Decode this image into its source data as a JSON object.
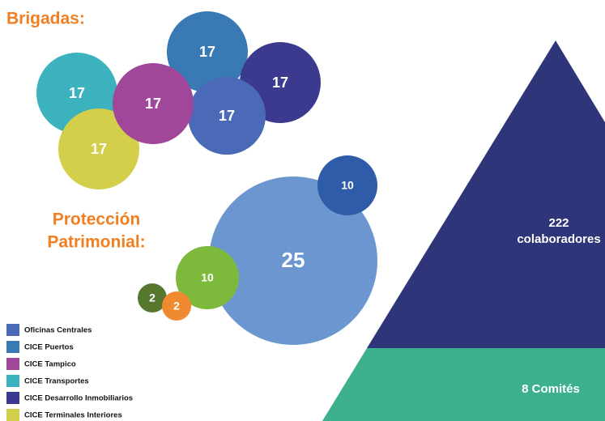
{
  "brigadas": {
    "title": "Brigadas:",
    "bubbles": [
      {
        "label": "17",
        "color": "#3a7ab4"
      },
      {
        "label": "17",
        "color": "#3b3a8e"
      },
      {
        "label": "17",
        "color": "#4a6ab8"
      },
      {
        "label": "17",
        "color": "#3bb2be"
      },
      {
        "label": "17",
        "color": "#d3cf4a"
      },
      {
        "label": "17",
        "color": "#a0479a"
      }
    ]
  },
  "proteccion": {
    "title": [
      "Protección",
      "Patrimonial:"
    ],
    "bubbles": [
      {
        "label": "25",
        "color": "#6b96d0"
      },
      {
        "label": "10",
        "color": "#2f5ca8"
      },
      {
        "label": "10",
        "color": "#7dba3c"
      },
      {
        "label": "2",
        "color": "#55782e"
      },
      {
        "label": "2",
        "color": "#f08a30"
      }
    ]
  },
  "legend": [
    {
      "label": "Oficinas Centrales",
      "color": "#4a6ab8"
    },
    {
      "label": " CICE Puertos",
      "color": "#3a7ab4"
    },
    {
      "label": "CICE Tampico",
      "color": "#a0479a"
    },
    {
      "label": "CICE Transportes",
      "color": "#3bb2be"
    },
    {
      "label": "CICE Desarrollo Inmobiliarios",
      "color": "#3b3a8e"
    },
    {
      "label": "CICE Terminales Interiores",
      "color": "#d3cf4a"
    }
  ],
  "pyramid": {
    "top": {
      "lines": [
        "222",
        "colaboradores"
      ],
      "color": "#2f3579"
    },
    "bottom": {
      "label": "8 Comités",
      "color": "#3db08e"
    }
  }
}
